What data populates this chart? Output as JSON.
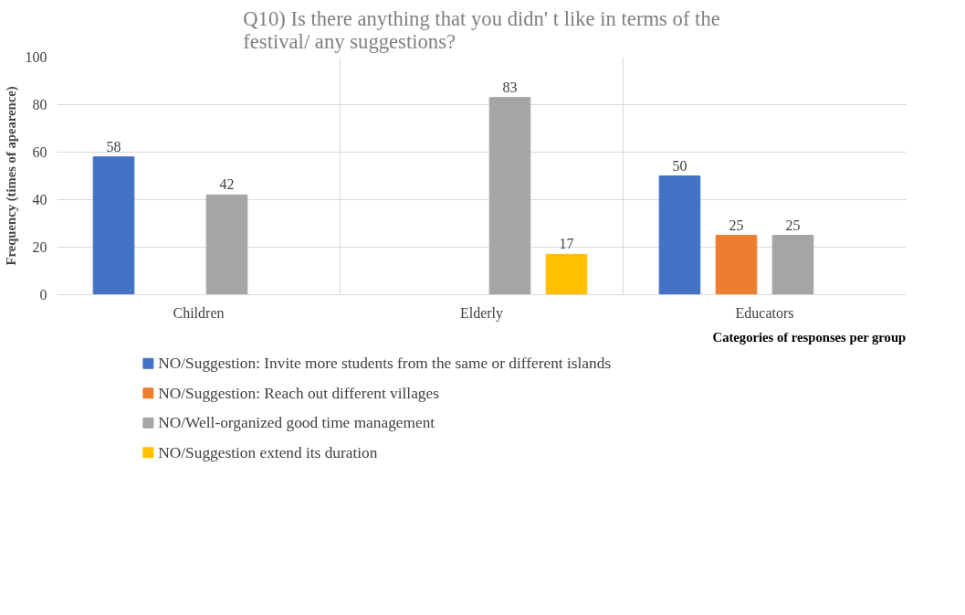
{
  "chart_data": {
    "type": "bar",
    "title": "Q10) Is there anything that you didn' t like in terms of the\nfestival/ any suggestions?",
    "xlabel": "Categories of responses per group",
    "ylabel": "Frequency (times of apearence)",
    "categories": [
      "Children",
      "Elderly",
      "Educators"
    ],
    "series": [
      {
        "name": "NO/Suggestion: Invite more students from the same or different islands",
        "color": "#4472c4",
        "values": [
          58,
          null,
          50
        ]
      },
      {
        "name": "NO/Suggestion: Reach out different villages",
        "color": "#ed7d31",
        "values": [
          null,
          null,
          25
        ]
      },
      {
        "name": "NO/Well-organized good time management",
        "color": "#a5a5a5",
        "values": [
          42,
          83,
          25
        ]
      },
      {
        "name": "NO/Suggestion extend its duration",
        "color": "#ffc000",
        "values": [
          null,
          17,
          null
        ]
      }
    ],
    "ylim": [
      0,
      100
    ],
    "yticks": [
      0,
      20,
      40,
      60,
      80,
      100
    ],
    "grid": true,
    "legend": "bottom",
    "data_labels": true
  }
}
